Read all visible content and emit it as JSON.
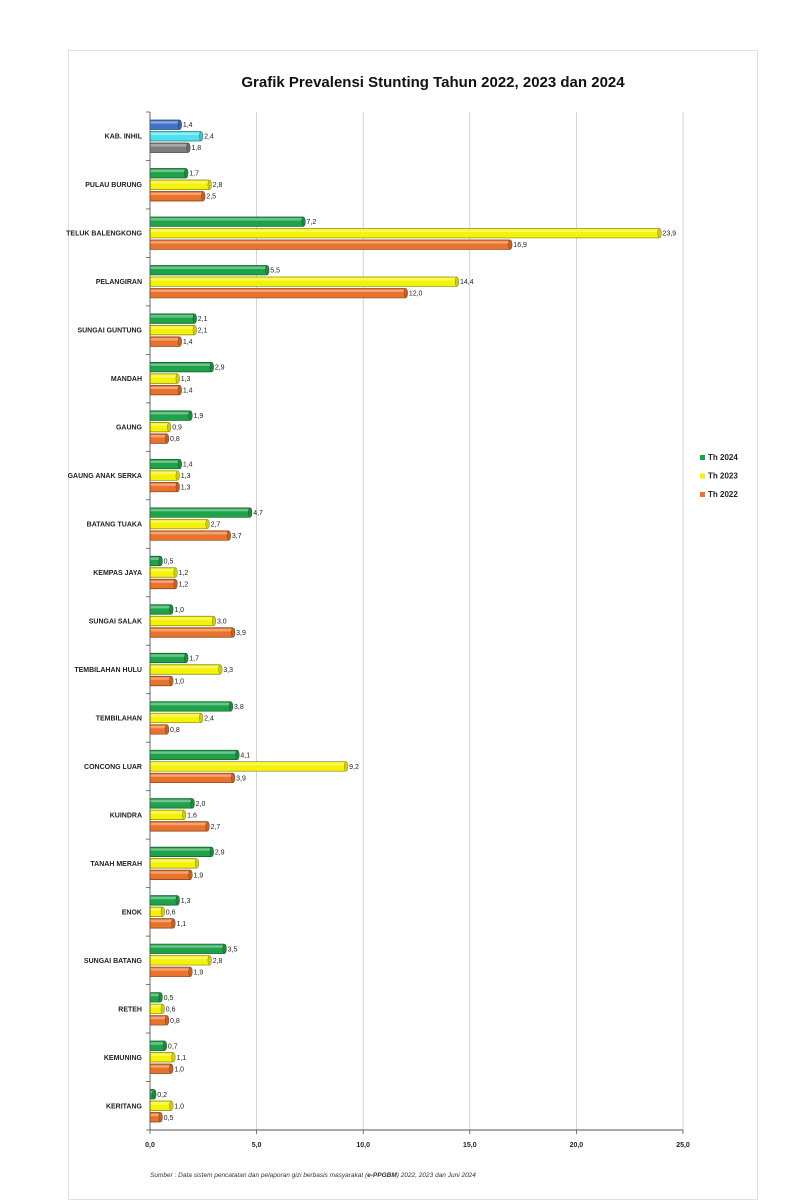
{
  "chart_data": {
    "type": "bar",
    "orientation": "horizontal",
    "title": "Grafik Prevalensi Stunting Tahun 2022, 2023 dan 2024",
    "categories": [
      "KAB. INHIL",
      "PULAU BURUNG",
      "TELUK BALENGKONG",
      "PELANGIRAN",
      "SUNGAI GUNTUNG",
      "MANDAH",
      "GAUNG",
      "GAUNG ANAK SERKA",
      "BATANG TUAKA",
      "KEMPAS JAYA",
      "SUNGAI SALAK",
      "TEMBILAHAN HULU",
      "TEMBILAHAN",
      "CONCONG LUAR",
      "KUINDRA",
      "TANAH MERAH",
      "ENOK",
      "SUNGAI BATANG",
      "RETEH",
      "KEMUNING",
      "KERITANG"
    ],
    "series": [
      {
        "name": "Th 2024",
        "color": "#1fa34a",
        "values": [
          1.4,
          1.7,
          7.2,
          5.5,
          2.1,
          2.9,
          1.9,
          1.4,
          4.7,
          0.5,
          1.0,
          1.7,
          3.8,
          4.1,
          2.0,
          2.9,
          1.3,
          3.5,
          0.5,
          0.7,
          0.2
        ],
        "labels": [
          "1,4",
          "1,7",
          "7,2",
          "5,5",
          "2,1",
          "2,9",
          "1,9",
          "1,4",
          "4,7",
          "0,5",
          "1,0",
          "1,7",
          "3,8",
          "4,1",
          "2,0",
          "2,9",
          "1,3",
          "3,5",
          "0,5",
          "0,7",
          "0,2"
        ]
      },
      {
        "name": "Th 2023",
        "color": "#f5f20a",
        "values": [
          2.4,
          2.8,
          23.9,
          14.4,
          2.1,
          1.3,
          0.9,
          1.3,
          2.7,
          1.2,
          3.0,
          3.3,
          2.4,
          9.2,
          1.6,
          2.2,
          0.6,
          2.8,
          0.6,
          1.1,
          1.0
        ],
        "labels": [
          "2,4",
          "2,8",
          "23,9",
          "14,4",
          "2,1",
          "1,3",
          "0,9",
          "1,3",
          "2,7",
          "1,2",
          "3,0",
          "3,3",
          "2,4",
          "9,2",
          "1,6",
          "",
          "0,6",
          "2,8",
          "0,6",
          "1,1",
          "1,0"
        ]
      },
      {
        "name": "Th 2022",
        "color": "#e9722c",
        "values": [
          1.8,
          2.5,
          16.9,
          12.0,
          1.4,
          1.4,
          0.8,
          1.3,
          3.7,
          1.2,
          3.9,
          1.0,
          0.8,
          3.9,
          2.7,
          1.9,
          1.1,
          1.9,
          0.8,
          1.0,
          0.5
        ],
        "labels": [
          "1,8",
          "2,5",
          "16,9",
          "12,0",
          "1,4",
          "1,4",
          "0,8",
          "1,3",
          "3,7",
          "1,2",
          "3,9",
          "1,0",
          "0,8",
          "3,9",
          "2,7",
          "1,9",
          "1,1",
          "1,9",
          "0,8",
          "1,0",
          "0,5"
        ]
      }
    ],
    "kab_inhil_colors": [
      "#3f74c8",
      "#4fe2ee",
      "#7d7d7d"
    ],
    "xlim": [
      0,
      25
    ],
    "xticks": [
      "0,0",
      "5,0",
      "10,0",
      "15,0",
      "20,0",
      "25,0"
    ],
    "grid": "vertical",
    "legend_position": "right",
    "legend": [
      "Th 2024",
      "Th 2023",
      "Th 2022"
    ]
  },
  "source_prefix": "Sumber : Data sistem pencatatan dan pelaporan gizi berbasis masyarakat (",
  "source_bold": "e-PPGBM",
  "source_suffix": ")  2022, 2023 dan Juni 2024"
}
